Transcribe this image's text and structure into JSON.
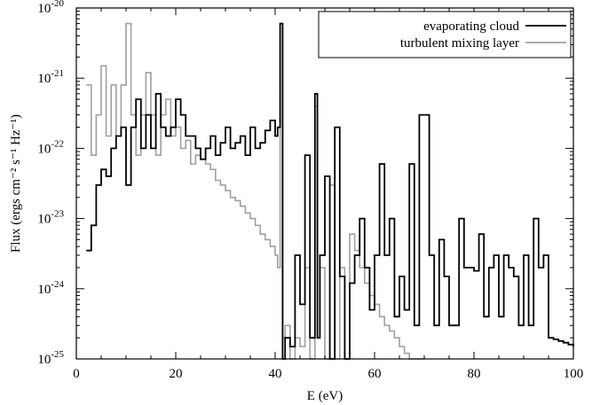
{
  "chart_data": {
    "type": "line",
    "title": "",
    "xlabel": "E (eV)",
    "ylabel": "Flux (ergs cm⁻² s⁻¹ Hz⁻¹)",
    "xlim": [
      0,
      100
    ],
    "ylim": [
      1e-25,
      1e-20
    ],
    "y_scale": "log",
    "x_ticks": [
      0,
      20,
      40,
      60,
      80,
      100
    ],
    "y_ticks": [
      "-25",
      "-24",
      "-23",
      "-22",
      "-21",
      "-20"
    ],
    "y_tick_base": "10",
    "legend_position": "top-right",
    "series": [
      {
        "name": "evaporating cloud",
        "color": "#000000",
        "step": true,
        "x": [
          2,
          3,
          4,
          5,
          6,
          7,
          8,
          9,
          10,
          11,
          12,
          13,
          14,
          15,
          16,
          17,
          18,
          19,
          20,
          21,
          22,
          23,
          24,
          25,
          26,
          27,
          28,
          29,
          30,
          31,
          32,
          33,
          34,
          35,
          36,
          37,
          38,
          39,
          40,
          40.5,
          41,
          41.5,
          42,
          43,
          44,
          45,
          46,
          47,
          48,
          48.5,
          49,
          50,
          51,
          52,
          53,
          54,
          55,
          56,
          57,
          58,
          59,
          60,
          61,
          62,
          63,
          64,
          65,
          66,
          67,
          68,
          69,
          70,
          71,
          72,
          73,
          74,
          75,
          76,
          77,
          78,
          79,
          80,
          81,
          82,
          83,
          84,
          85,
          86,
          87,
          88,
          89,
          90,
          91,
          92,
          93,
          94,
          95,
          96,
          97,
          98,
          99,
          100
        ],
        "y": [
          3.5e-24,
          8e-24,
          3e-23,
          5e-23,
          4e-23,
          1e-22,
          1.5e-22,
          2e-22,
          3e-23,
          2e-22,
          5e-22,
          1e-22,
          3e-22,
          1e-22,
          6e-22,
          2e-22,
          1.5e-22,
          2e-22,
          5e-22,
          3e-22,
          1.5e-22,
          1.5e-22,
          1e-22,
          7e-23,
          1e-22,
          1.5e-22,
          8e-23,
          1.2e-22,
          2e-22,
          1e-22,
          1.2e-22,
          1.5e-22,
          8e-23,
          2e-22,
          1e-22,
          1.2e-22,
          1.8e-22,
          2.5e-22,
          1.5e-22,
          2e-22,
          6e-21,
          1e-25,
          2e-25,
          1.5e-25,
          3e-24,
          6e-25,
          8e-23,
          2e-25,
          6e-22,
          2e-25,
          3e-24,
          4e-23,
          1e-25,
          2e-22,
          1.5e-24,
          1e-25,
          1.2e-24,
          3e-24,
          1e-23,
          2e-24,
          5e-25,
          3e-24,
          6e-23,
          3e-24,
          1e-23,
          4e-25,
          1.5e-24,
          5e-25,
          6e-23,
          3e-25,
          3e-22,
          3e-22,
          3e-24,
          3e-25,
          5e-24,
          1.5e-24,
          3e-25,
          3e-25,
          1e-23,
          2e-24,
          2e-24,
          1.8e-24,
          6e-24,
          4e-25,
          2e-24,
          3e-24,
          4e-25,
          3e-24,
          2e-24,
          1.5e-24,
          3e-25,
          3e-24,
          3e-25,
          1e-23,
          2e-24,
          3e-24,
          2e-25,
          1.9e-25,
          1.8e-25,
          1.7e-25,
          1.6e-25,
          1.5e-25
        ]
      },
      {
        "name": "turbulent mixing layer",
        "color": "#a0a0a0",
        "step": true,
        "x": [
          2,
          3,
          4,
          5,
          6,
          7,
          8,
          9,
          10,
          11,
          12,
          13,
          14,
          15,
          16,
          17,
          18,
          19,
          20,
          21,
          22,
          23,
          24,
          25,
          26,
          27,
          28,
          29,
          30,
          31,
          32,
          33,
          34,
          35,
          36,
          37,
          38,
          39,
          40,
          40.5,
          41,
          41.5,
          42,
          43,
          44,
          45,
          46,
          47,
          48,
          48.5,
          49,
          50,
          51,
          52,
          53,
          54,
          55,
          56,
          57,
          58,
          59,
          60,
          61,
          62,
          63,
          64,
          65,
          66,
          67,
          68,
          69
        ],
        "y": [
          8e-22,
          8e-23,
          3e-22,
          1.5e-21,
          1.5e-22,
          8e-22,
          1.5e-22,
          8e-22,
          6e-21,
          3e-22,
          8e-23,
          3e-22,
          1.2e-21,
          3e-22,
          8e-23,
          3e-22,
          5e-22,
          1.5e-22,
          2e-22,
          1e-22,
          1.3e-22,
          6e-23,
          8e-23,
          7e-23,
          6e-23,
          5e-23,
          3.5e-23,
          3e-23,
          2.5e-23,
          2e-23,
          1.8e-23,
          1.5e-23,
          1.2e-23,
          1e-23,
          8e-24,
          6e-24,
          5e-24,
          4e-24,
          3e-24,
          2e-24,
          6e-21,
          2e-25,
          3e-25,
          1e-25,
          2e-25,
          1.5e-25,
          2e-24,
          1e-25,
          4e-22,
          2e-25,
          2e-24,
          1e-25,
          3e-23,
          1e-25,
          2e-24,
          1e-25,
          6e-24,
          3.5e-24,
          2e-24,
          1.2e-24,
          8e-25,
          6e-25,
          4e-25,
          3e-25,
          2.5e-25,
          2e-25,
          1.5e-25,
          1.2e-25,
          1e-25,
          1e-25,
          1e-25
        ]
      }
    ]
  }
}
